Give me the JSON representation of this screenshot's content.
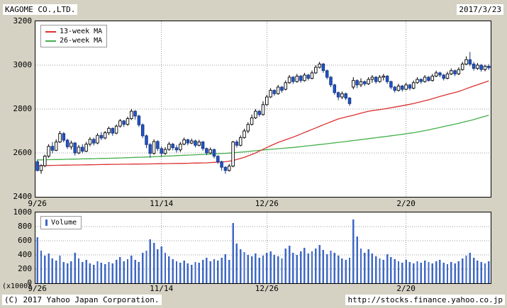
{
  "header": {
    "title": "KAGOME CO.,LTD.",
    "date": "2017/3/23"
  },
  "footer": {
    "copyright": "(C) 2017 Yahoo Japan Corporation.",
    "url": "http://stocks.finance.yahoo.co.jp"
  },
  "chart_data": {
    "type": "candlestick",
    "title": "KAGOME CO.,LTD.",
    "as_of_date": "2017/3/23",
    "legend": {
      "ma13": "13-week MA",
      "ma26": "26-week MA",
      "volume": "Volume"
    },
    "colors": {
      "up": "#ffffff",
      "down": "#2154c8",
      "down_border": "#16367e",
      "ma13": "#dc3032",
      "ma26": "#43b04a",
      "volume": "#3f68c4",
      "grid": "#999999",
      "background": "#d5d1c3",
      "panel": "#ffffff"
    },
    "price_axis": {
      "min": 2400,
      "max": 3200,
      "ticks": [
        3200,
        3000,
        2800,
        2600,
        2400
      ]
    },
    "volume_axis": {
      "min": 0,
      "max": 1000,
      "ticks": [
        1000,
        800,
        600,
        400,
        200,
        0
      ],
      "unit": "(x1000)"
    },
    "x_ticks": [
      {
        "label": "9/26",
        "index": 0
      },
      {
        "label": "11/14",
        "index": 33
      },
      {
        "label": "12/26",
        "index": 61
      },
      {
        "label": "2/20",
        "index": 98
      }
    ],
    "candles": [
      [
        2560,
        2570,
        2515,
        2520
      ],
      [
        2520,
        2548,
        2505,
        2542
      ],
      [
        2542,
        2592,
        2535,
        2585
      ],
      [
        2585,
        2640,
        2578,
        2630
      ],
      [
        2630,
        2650,
        2598,
        2612
      ],
      [
        2612,
        2662,
        2608,
        2650
      ],
      [
        2650,
        2700,
        2645,
        2688
      ],
      [
        2688,
        2695,
        2648,
        2658
      ],
      [
        2658,
        2665,
        2618,
        2628
      ],
      [
        2628,
        2656,
        2615,
        2645
      ],
      [
        2645,
        2650,
        2588,
        2600
      ],
      [
        2600,
        2636,
        2594,
        2626
      ],
      [
        2626,
        2640,
        2598,
        2608
      ],
      [
        2608,
        2650,
        2604,
        2640
      ],
      [
        2640,
        2672,
        2630,
        2662
      ],
      [
        2662,
        2670,
        2634,
        2645
      ],
      [
        2645,
        2690,
        2640,
        2680
      ],
      [
        2680,
        2695,
        2658,
        2668
      ],
      [
        2668,
        2700,
        2662,
        2692
      ],
      [
        2692,
        2720,
        2682,
        2712
      ],
      [
        2712,
        2716,
        2678,
        2690
      ],
      [
        2690,
        2730,
        2685,
        2722
      ],
      [
        2722,
        2755,
        2715,
        2746
      ],
      [
        2746,
        2750,
        2718,
        2730
      ],
      [
        2730,
        2765,
        2724,
        2756
      ],
      [
        2756,
        2800,
        2750,
        2790
      ],
      [
        2790,
        2795,
        2752,
        2768
      ],
      [
        2768,
        2774,
        2718,
        2728
      ],
      [
        2728,
        2735,
        2668,
        2678
      ],
      [
        2678,
        2684,
        2622,
        2638
      ],
      [
        2638,
        2645,
        2578,
        2598
      ],
      [
        2598,
        2662,
        2592,
        2652
      ],
      [
        2652,
        2658,
        2608,
        2620
      ],
      [
        2620,
        2630,
        2584,
        2598
      ],
      [
        2598,
        2626,
        2590,
        2616
      ],
      [
        2616,
        2650,
        2610,
        2640
      ],
      [
        2640,
        2646,
        2612,
        2624
      ],
      [
        2624,
        2636,
        2602,
        2614
      ],
      [
        2614,
        2650,
        2605,
        2640
      ],
      [
        2640,
        2670,
        2635,
        2660
      ],
      [
        2660,
        2665,
        2635,
        2645
      ],
      [
        2645,
        2665,
        2640,
        2655
      ],
      [
        2655,
        2660,
        2625,
        2635
      ],
      [
        2635,
        2660,
        2630,
        2650
      ],
      [
        2650,
        2655,
        2610,
        2620
      ],
      [
        2620,
        2625,
        2590,
        2600
      ],
      [
        2600,
        2625,
        2595,
        2615
      ],
      [
        2615,
        2620,
        2575,
        2585
      ],
      [
        2585,
        2590,
        2550,
        2560
      ],
      [
        2560,
        2565,
        2520,
        2535
      ],
      [
        2535,
        2540,
        2505,
        2520
      ],
      [
        2520,
        2550,
        2515,
        2540
      ],
      [
        2540,
        2655,
        2535,
        2650
      ],
      [
        2650,
        2660,
        2625,
        2635
      ],
      [
        2635,
        2680,
        2630,
        2670
      ],
      [
        2670,
        2710,
        2665,
        2700
      ],
      [
        2700,
        2740,
        2690,
        2730
      ],
      [
        2730,
        2775,
        2725,
        2760
      ],
      [
        2760,
        2800,
        2755,
        2790
      ],
      [
        2790,
        2795,
        2765,
        2775
      ],
      [
        2775,
        2835,
        2770,
        2820
      ],
      [
        2820,
        2865,
        2815,
        2855
      ],
      [
        2855,
        2895,
        2850,
        2885
      ],
      [
        2885,
        2890,
        2860,
        2870
      ],
      [
        2870,
        2910,
        2865,
        2900
      ],
      [
        2900,
        2905,
        2875,
        2885
      ],
      [
        2890,
        2930,
        2885,
        2920
      ],
      [
        2920,
        2955,
        2915,
        2945
      ],
      [
        2945,
        2950,
        2915,
        2925
      ],
      [
        2925,
        2960,
        2920,
        2950
      ],
      [
        2950,
        2955,
        2920,
        2930
      ],
      [
        2930,
        2965,
        2925,
        2955
      ],
      [
        2955,
        2960,
        2930,
        2940
      ],
      [
        2940,
        2975,
        2935,
        2965
      ],
      [
        2965,
        3000,
        2960,
        2990
      ],
      [
        2990,
        3015,
        2985,
        3005
      ],
      [
        3005,
        3010,
        2965,
        2975
      ],
      [
        2975,
        2980,
        2935,
        2945
      ],
      [
        2945,
        2950,
        2900,
        2910
      ],
      [
        2910,
        2915,
        2865,
        2875
      ],
      [
        2875,
        2880,
        2840,
        2855
      ],
      [
        2855,
        2880,
        2845,
        2870
      ],
      [
        2870,
        2875,
        2840,
        2850
      ],
      [
        2850,
        2855,
        2815,
        2825
      ],
      [
        2900,
        2945,
        2890,
        2930
      ],
      [
        2930,
        2935,
        2895,
        2910
      ],
      [
        2910,
        2940,
        2900,
        2925
      ],
      [
        2925,
        2930,
        2905,
        2915
      ],
      [
        2915,
        2945,
        2910,
        2935
      ],
      [
        2935,
        2955,
        2920,
        2945
      ],
      [
        2945,
        2950,
        2915,
        2925
      ],
      [
        2925,
        2955,
        2920,
        2945
      ],
      [
        2945,
        2960,
        2930,
        2950
      ],
      [
        2950,
        2955,
        2915,
        2925
      ],
      [
        2925,
        2930,
        2890,
        2900
      ],
      [
        2900,
        2905,
        2875,
        2885
      ],
      [
        2885,
        2915,
        2880,
        2905
      ],
      [
        2905,
        2910,
        2880,
        2890
      ],
      [
        2890,
        2920,
        2885,
        2910
      ],
      [
        2910,
        2915,
        2885,
        2895
      ],
      [
        2895,
        2930,
        2890,
        2920
      ],
      [
        2920,
        2945,
        2915,
        2935
      ],
      [
        2935,
        2940,
        2915,
        2925
      ],
      [
        2925,
        2955,
        2920,
        2945
      ],
      [
        2945,
        2950,
        2925,
        2930
      ],
      [
        2930,
        2960,
        2925,
        2950
      ],
      [
        2950,
        2975,
        2945,
        2965
      ],
      [
        2965,
        2970,
        2945,
        2955
      ],
      [
        2955,
        2960,
        2930,
        2940
      ],
      [
        2940,
        2970,
        2935,
        2960
      ],
      [
        2960,
        2985,
        2955,
        2975
      ],
      [
        2975,
        2980,
        2950,
        2960
      ],
      [
        2960,
        2990,
        2955,
        2980
      ],
      [
        2980,
        3015,
        2975,
        3005
      ],
      [
        3005,
        3040,
        3000,
        3025
      ],
      [
        3025,
        3060,
        2995,
        3005
      ],
      [
        3005,
        3015,
        2975,
        2985
      ],
      [
        2985,
        3010,
        2978,
        3000
      ],
      [
        3000,
        3005,
        2970,
        2980
      ],
      [
        2980,
        3002,
        2972,
        2995
      ],
      [
        2995,
        3005,
        2978,
        2988
      ]
    ],
    "volume": [
      650,
      460,
      390,
      420,
      350,
      320,
      390,
      300,
      280,
      310,
      430,
      350,
      300,
      330,
      280,
      260,
      310,
      290,
      270,
      300,
      280,
      330,
      370,
      310,
      340,
      390,
      330,
      300,
      430,
      460,
      620,
      570,
      480,
      520,
      430,
      380,
      340,
      310,
      290,
      320,
      280,
      260,
      300,
      290,
      330,
      360,
      310,
      340,
      320,
      360,
      410,
      330,
      850,
      560,
      480,
      440,
      400,
      380,
      420,
      360,
      390,
      430,
      450,
      400,
      380,
      350,
      490,
      530,
      430,
      400,
      450,
      500,
      420,
      450,
      490,
      540,
      470,
      410,
      460,
      430,
      390,
      350,
      330,
      360,
      900,
      660,
      490,
      430,
      480,
      420,
      380,
      350,
      330,
      410,
      370,
      340,
      310,
      290,
      330,
      300,
      280,
      310,
      290,
      320,
      300,
      280,
      310,
      330,
      290,
      270,
      300,
      280,
      310,
      350,
      390,
      430,
      360,
      320,
      300,
      280,
      310
    ],
    "ma13": [
      [
        0,
        2542
      ],
      [
        10,
        2545
      ],
      [
        20,
        2548
      ],
      [
        30,
        2550
      ],
      [
        40,
        2553
      ],
      [
        45,
        2555
      ],
      [
        50,
        2560
      ],
      [
        52,
        2565
      ],
      [
        55,
        2580
      ],
      [
        58,
        2600
      ],
      [
        61,
        2625
      ],
      [
        64,
        2648
      ],
      [
        68,
        2672
      ],
      [
        72,
        2700
      ],
      [
        76,
        2728
      ],
      [
        80,
        2755
      ],
      [
        84,
        2772
      ],
      [
        88,
        2790
      ],
      [
        92,
        2800
      ],
      [
        96,
        2812
      ],
      [
        100,
        2825
      ],
      [
        104,
        2842
      ],
      [
        108,
        2862
      ],
      [
        112,
        2880
      ],
      [
        116,
        2905
      ],
      [
        120,
        2928
      ]
    ],
    "ma26": [
      [
        0,
        2568
      ],
      [
        10,
        2572
      ],
      [
        20,
        2576
      ],
      [
        30,
        2582
      ],
      [
        40,
        2590
      ],
      [
        50,
        2598
      ],
      [
        55,
        2605
      ],
      [
        61,
        2615
      ],
      [
        68,
        2625
      ],
      [
        75,
        2638
      ],
      [
        82,
        2652
      ],
      [
        88,
        2665
      ],
      [
        94,
        2678
      ],
      [
        100,
        2692
      ],
      [
        104,
        2705
      ],
      [
        108,
        2720
      ],
      [
        112,
        2735
      ],
      [
        116,
        2752
      ],
      [
        120,
        2772
      ]
    ]
  }
}
